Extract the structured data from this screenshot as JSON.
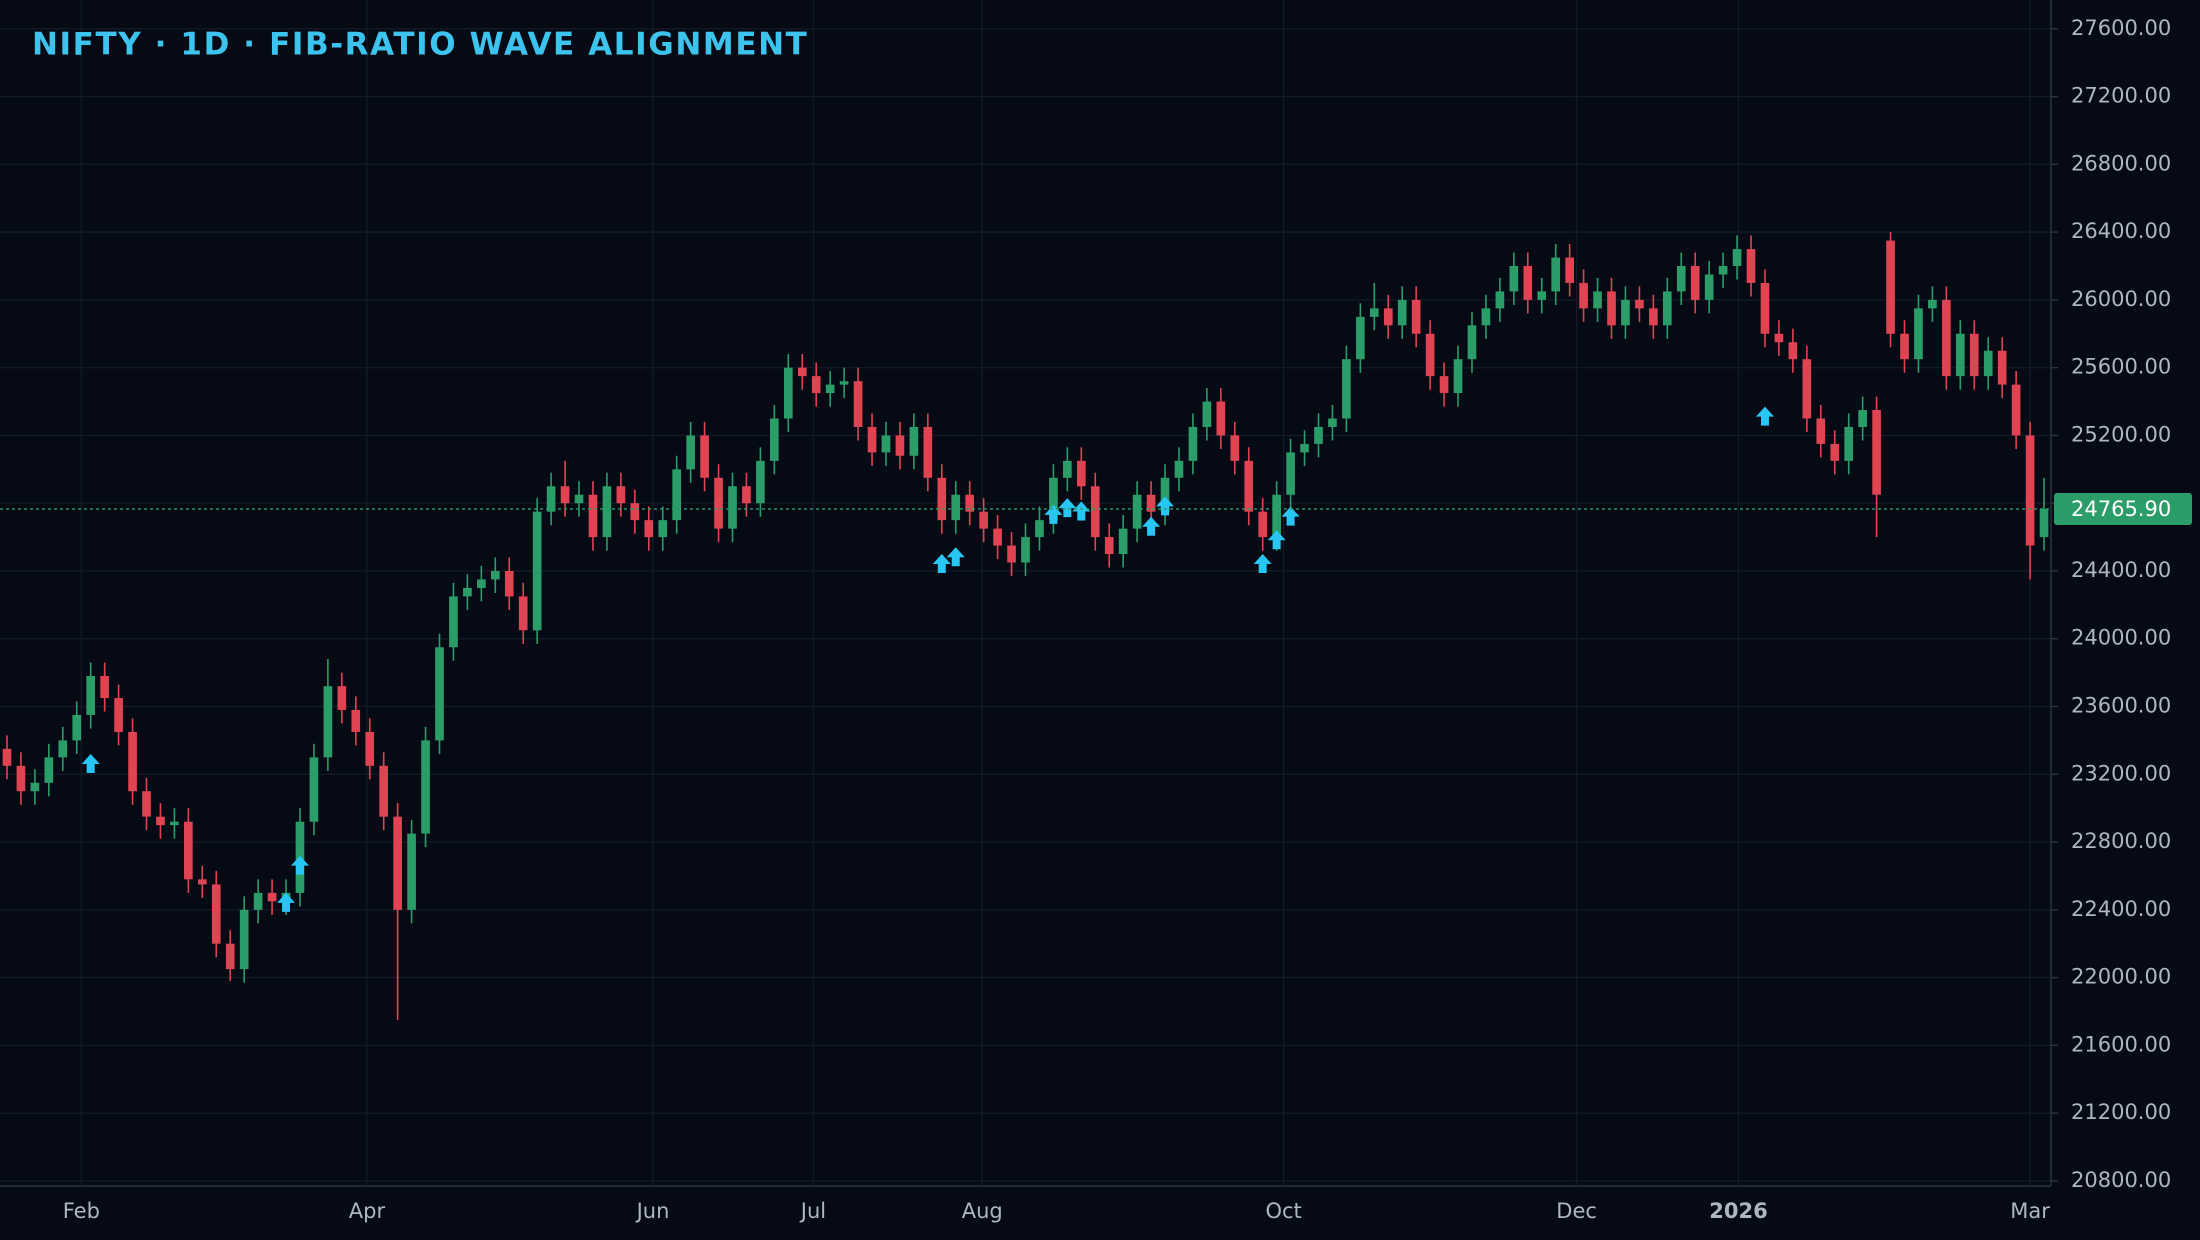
{
  "chart_data": {
    "type": "candlestick",
    "title": "NIFTY · 1D · FIB-RATIO WAVE ALIGNMENT",
    "up_color": "#2a9d68",
    "down_color": "#e04452",
    "marker_color": "#27c6f4",
    "title_color": "#3cc4ef",
    "grid": true,
    "xlim": [
      -0.5,
      146.5
    ],
    "ylim": [
      20770,
      27770
    ],
    "xticks": [
      {
        "value": 5.33,
        "label": "Feb"
      },
      {
        "value": 25.8,
        "label": "Apr"
      },
      {
        "value": 46.3,
        "label": "Jun"
      },
      {
        "value": 57.8,
        "label": "Jul"
      },
      {
        "value": 69.9,
        "label": "Aug"
      },
      {
        "value": 91.5,
        "label": "Oct"
      },
      {
        "value": 112.5,
        "label": "Dec"
      },
      {
        "value": 124.1,
        "label": "2026"
      },
      {
        "value": 145.0,
        "label": "Mar"
      }
    ],
    "yticks": [
      {
        "value": 20800,
        "label": "20800.00"
      },
      {
        "value": 21200,
        "label": "21200.00"
      },
      {
        "value": 21600,
        "label": "21600.00"
      },
      {
        "value": 22000,
        "label": "22000.00"
      },
      {
        "value": 22400,
        "label": "22400.00"
      },
      {
        "value": 22800,
        "label": "22800.00"
      },
      {
        "value": 23200,
        "label": "23200.00"
      },
      {
        "value": 23600,
        "label": "23600.00"
      },
      {
        "value": 24000,
        "label": "24000.00"
      },
      {
        "value": 24400,
        "label": "24400.00"
      },
      {
        "value": 24800,
        "label": "24800.00"
      },
      {
        "value": 25200,
        "label": "25200.00"
      },
      {
        "value": 25600,
        "label": "25600.00"
      },
      {
        "value": 26000,
        "label": "26000.00"
      },
      {
        "value": 26400,
        "label": "26400.00"
      },
      {
        "value": 26800,
        "label": "26800.00"
      },
      {
        "value": 27200,
        "label": "27200.00"
      },
      {
        "value": 27600,
        "label": "27600.00"
      }
    ],
    "last_price": {
      "value": 24765.9,
      "label": "24765.90"
    },
    "open": [
      23350,
      23250,
      23100,
      23150,
      23300,
      23400,
      23550,
      23780,
      23650,
      23450,
      23100,
      22950,
      22900,
      22920,
      22580,
      22550,
      22200,
      22050,
      22400,
      22500,
      22450,
      22500,
      22920,
      23300,
      23720,
      23580,
      23450,
      23250,
      22950,
      22400,
      22850,
      23400,
      23950,
      24250,
      24300,
      24350,
      24400,
      24250,
      24050,
      24750,
      24900,
      24800,
      24850,
      24600,
      24900,
      24800,
      24700,
      24600,
      24700,
      25000,
      25200,
      24950,
      24650,
      24900,
      24800,
      25050,
      25300,
      25600,
      25550,
      25450,
      25500,
      25520,
      25250,
      25100,
      25200,
      25080,
      25250,
      24950,
      24700,
      24850,
      24750,
      24650,
      24550,
      24450,
      24600,
      24700,
      24950,
      25050,
      24900,
      24600,
      24500,
      24650,
      24850,
      24750,
      24950,
      25050,
      25250,
      25400,
      25200,
      25050,
      24750,
      24600,
      24850,
      25100,
      25150,
      25250,
      25300,
      25650,
      25900,
      25950,
      25850,
      26000,
      25800,
      25550,
      25450,
      25650,
      25850,
      25950,
      26050,
      26200,
      26000,
      26050,
      26250,
      26100,
      25950,
      26050,
      25850,
      26000,
      25950,
      25850,
      26050,
      26200,
      26000,
      26150,
      26200,
      26300,
      26100,
      25800,
      25750,
      25650,
      25300,
      25150,
      25050,
      25250,
      25350,
      26350,
      25800,
      25650,
      25950,
      26000,
      25550,
      25800,
      25550,
      25700,
      25500,
      25200,
      24600
    ],
    "high": [
      23430,
      23330,
      23230,
      23380,
      23480,
      23630,
      23860,
      23860,
      23730,
      23530,
      23180,
      23030,
      23000,
      23000,
      22660,
      22630,
      22280,
      22480,
      22580,
      22580,
      22580,
      23000,
      23380,
      23880,
      23800,
      23660,
      23530,
      23330,
      23030,
      22930,
      23480,
      24030,
      24330,
      24380,
      24430,
      24480,
      24480,
      24330,
      24830,
      24980,
      25050,
      24930,
      24930,
      24980,
      24980,
      24880,
      24780,
      24780,
      25080,
      25280,
      25280,
      25030,
      24980,
      24980,
      25130,
      25380,
      25680,
      25680,
      25630,
      25580,
      25600,
      25600,
      25330,
      25280,
      25280,
      25330,
      25330,
      25030,
      24930,
      24930,
      24830,
      24730,
      24630,
      24680,
      24780,
      25030,
      25130,
      25130,
      24980,
      24680,
      24730,
      24930,
      24930,
      25030,
      25130,
      25330,
      25480,
      25480,
      25280,
      25130,
      24830,
      24930,
      25180,
      25230,
      25330,
      25380,
      25730,
      25980,
      26100,
      26030,
      26080,
      26080,
      25880,
      25630,
      25730,
      25930,
      26030,
      26130,
      26280,
      26280,
      26130,
      26330,
      26330,
      26180,
      26130,
      26130,
      26080,
      26080,
      26030,
      26130,
      26280,
      26280,
      26230,
      26280,
      26380,
      26380,
      26180,
      25880,
      25830,
      25730,
      25380,
      25230,
      25330,
      25430,
      25430,
      26400,
      25880,
      26030,
      26080,
      26080,
      25880,
      25880,
      25780,
      25780,
      25580,
      25280,
      24950
    ],
    "low": [
      23170,
      23020,
      23020,
      23070,
      23220,
      23320,
      23470,
      23570,
      23370,
      23020,
      22870,
      22820,
      22820,
      22500,
      22470,
      22120,
      21980,
      21970,
      22320,
      22370,
      22370,
      22420,
      22840,
      23220,
      23500,
      23370,
      23170,
      22870,
      21750,
      22320,
      22770,
      23320,
      23870,
      24170,
      24220,
      24270,
      24170,
      23970,
      23970,
      24670,
      24720,
      24720,
      24520,
      24520,
      24720,
      24620,
      24520,
      24520,
      24620,
      24920,
      24870,
      24570,
      24570,
      24720,
      24720,
      24970,
      25220,
      25470,
      25370,
      25370,
      25420,
      25170,
      25020,
      25020,
      25000,
      25000,
      24870,
      24620,
      24620,
      24670,
      24570,
      24470,
      24370,
      24370,
      24520,
      24620,
      24870,
      24820,
      24520,
      24420,
      24420,
      24570,
      24670,
      24670,
      24870,
      24970,
      25170,
      25120,
      24970,
      24670,
      24520,
      24520,
      24770,
      25020,
      25070,
      25170,
      25220,
      25570,
      25820,
      25770,
      25770,
      25720,
      25470,
      25370,
      25370,
      25570,
      25770,
      25870,
      25970,
      25920,
      25920,
      25970,
      26020,
      25870,
      25870,
      25770,
      25770,
      25870,
      25770,
      25770,
      25970,
      25920,
      25920,
      26070,
      26120,
      26020,
      25720,
      25670,
      25570,
      25220,
      25070,
      24970,
      24970,
      25170,
      24600,
      25720,
      25570,
      25570,
      25870,
      25470,
      25470,
      25470,
      25470,
      25420,
      25120,
      24350,
      24520
    ],
    "close": [
      23250,
      23100,
      23150,
      23300,
      23400,
      23550,
      23780,
      23650,
      23450,
      23100,
      22950,
      22900,
      22920,
      22580,
      22550,
      22200,
      22050,
      22400,
      22500,
      22450,
      22500,
      22920,
      23300,
      23720,
      23580,
      23450,
      23250,
      22950,
      22400,
      22850,
      23400,
      23950,
      24250,
      24300,
      24350,
      24400,
      24250,
      24050,
      24750,
      24900,
      24800,
      24850,
      24600,
      24900,
      24800,
      24700,
      24600,
      24700,
      25000,
      25200,
      24950,
      24650,
      24900,
      24800,
      25050,
      25300,
      25600,
      25550,
      25450,
      25500,
      25520,
      25250,
      25100,
      25200,
      25080,
      25250,
      24950,
      24700,
      24850,
      24750,
      24650,
      24550,
      24450,
      24600,
      24700,
      24950,
      25050,
      24900,
      24600,
      24500,
      24650,
      24850,
      24750,
      24950,
      25050,
      25250,
      25400,
      25200,
      25050,
      24750,
      24600,
      24850,
      25100,
      25150,
      25250,
      25300,
      25650,
      25900,
      25950,
      25850,
      26000,
      25800,
      25550,
      25450,
      25650,
      25850,
      25950,
      26050,
      26200,
      26000,
      26050,
      26250,
      26100,
      25950,
      26050,
      25850,
      26000,
      25950,
      25850,
      26050,
      26200,
      26000,
      26150,
      26200,
      26300,
      26100,
      25800,
      25750,
      25650,
      25300,
      25150,
      25050,
      25250,
      25350,
      24850,
      25800,
      25650,
      25950,
      26000,
      25550,
      25800,
      25550,
      25700,
      25500,
      25200,
      24550,
      24765.9
    ],
    "markers": {
      "x": [
        6,
        20,
        21,
        67,
        68,
        75,
        76,
        77,
        82,
        83,
        90,
        91,
        92,
        126
      ],
      "y": [
        23320,
        22500,
        22720,
        24500,
        24540,
        24790,
        24830,
        24810,
        24720,
        24840,
        24500,
        24640,
        24780,
        25370
      ]
    }
  }
}
